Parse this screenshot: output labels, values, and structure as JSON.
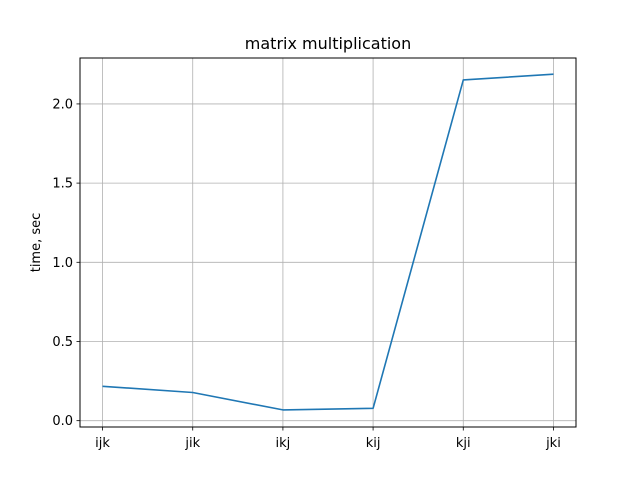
{
  "chart_data": {
    "type": "line",
    "title": "matrix multiplication",
    "xlabel": "",
    "ylabel": "time, sec",
    "categories": [
      "ijk",
      "jik",
      "ikj",
      "kij",
      "kji",
      "jki"
    ],
    "series": [
      {
        "values": [
          0.217,
          0.178,
          0.068,
          0.078,
          2.152,
          2.188
        ],
        "color": "#1f77b4"
      }
    ],
    "yticks": [
      0.0,
      0.5,
      1.0,
      1.5,
      2.0
    ],
    "ytick_labels": [
      "0.0",
      "0.5",
      "1.0",
      "1.5",
      "2.0"
    ],
    "ylim": [
      -0.04,
      2.29
    ],
    "grid": true,
    "legend": "none"
  }
}
